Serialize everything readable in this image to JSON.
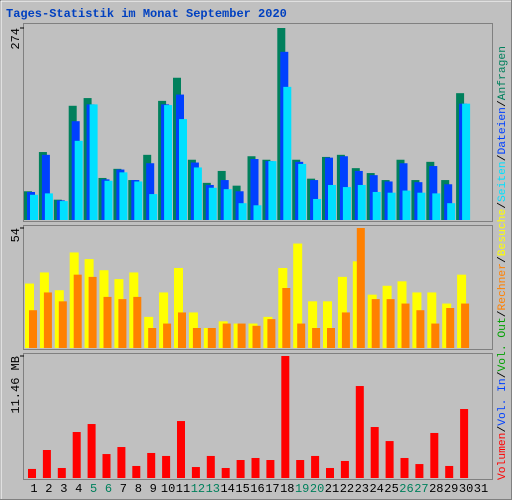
{
  "title": "Tages-Statistik im Monat September 2020",
  "legend_separator": "/",
  "chart_data": [
    {
      "type": "bar",
      "ylim": [
        0,
        274
      ],
      "yticks": [
        274
      ],
      "series": [
        {
          "name": "Anfragen",
          "color": "#00805c",
          "values": [
            41,
            97,
            29,
            163,
            174,
            60,
            73,
            57,
            93,
            170,
            203,
            86,
            53,
            70,
            49,
            91,
            86,
            274,
            86,
            59,
            90,
            93,
            74,
            67,
            57,
            86,
            57,
            83,
            57,
            181,
            null
          ]
        },
        {
          "name": "Dateien",
          "color": "#0040ff",
          "values": [
            40,
            93,
            28,
            141,
            165,
            58,
            72,
            57,
            81,
            165,
            179,
            82,
            50,
            57,
            41,
            87,
            84,
            240,
            83,
            57,
            89,
            91,
            70,
            64,
            55,
            81,
            54,
            77,
            51,
            166,
            null
          ]
        },
        {
          "name": "Seiten",
          "color": "#00e0ff",
          "values": [
            36,
            38,
            27,
            113,
            165,
            56,
            68,
            55,
            37,
            164,
            144,
            75,
            46,
            44,
            24,
            21,
            84,
            190,
            80,
            30,
            50,
            47,
            50,
            40,
            39,
            42,
            39,
            38,
            24,
            166,
            null
          ]
        }
      ]
    },
    {
      "type": "bar",
      "ylim": [
        0,
        54
      ],
      "yticks": [
        54
      ],
      "series": [
        {
          "name": "Besuche",
          "color": "#ffff00",
          "values": [
            29,
            34,
            26,
            43,
            40,
            35,
            31,
            34,
            14,
            25,
            36,
            16,
            9,
            12,
            11,
            11,
            14,
            36,
            47,
            21,
            21,
            32,
            39,
            24,
            28,
            30,
            25,
            25,
            20,
            33,
            null
          ]
        },
        {
          "name": "Rechner",
          "color": "#ff8000",
          "values": [
            17,
            25,
            21,
            33,
            32,
            23,
            22,
            23,
            9,
            11,
            16,
            9,
            9,
            11,
            11,
            10,
            13,
            27,
            11,
            9,
            9,
            16,
            54,
            22,
            22,
            20,
            17,
            11,
            18,
            20,
            null
          ]
        }
      ]
    },
    {
      "type": "bar",
      "ylim": [
        0,
        11.46
      ],
      "yticks": [
        {
          "value": 11.46,
          "label": "11.46 MB"
        }
      ],
      "categories": [
        "1",
        "2",
        "3",
        "4",
        "5",
        "6",
        "7",
        "8",
        "9",
        "10",
        "11",
        "12",
        "13",
        "14",
        "15",
        "16",
        "17",
        "18",
        "19",
        "20",
        "21",
        "22",
        "23",
        "24",
        "25",
        "26",
        "27",
        "28",
        "29",
        "30",
        "31"
      ],
      "category_colors": [
        "#000000",
        "#000000",
        "#000000",
        "#000000",
        "#00805c",
        "#00805c",
        "#000000",
        "#000000",
        "#000000",
        "#000000",
        "#000000",
        "#00805c",
        "#00805c",
        "#000000",
        "#000000",
        "#000000",
        "#000000",
        "#000000",
        "#00805c",
        "#00805c",
        "#000000",
        "#000000",
        "#000000",
        "#000000",
        "#000000",
        "#00805c",
        "#00805c",
        "#000000",
        "#000000",
        "#000000",
        "#000000"
      ],
      "series": [
        {
          "name": "Vol. Out",
          "color": "#00a000",
          "values": [
            0,
            0,
            0,
            0,
            0,
            0,
            0,
            0,
            0,
            0,
            0,
            0,
            0,
            0,
            0,
            0,
            0,
            0,
            0,
            0,
            0,
            0,
            0,
            0,
            0,
            0,
            0,
            0,
            0,
            0,
            null
          ]
        },
        {
          "name": "Vol. In",
          "color": "#0040ff",
          "values": [
            0,
            0,
            0,
            0,
            0,
            0,
            0,
            0,
            0,
            0,
            0,
            0,
            0,
            0,
            0,
            0,
            0,
            0,
            0,
            0,
            0,
            0,
            0,
            0,
            0,
            0,
            0,
            0,
            0,
            0,
            null
          ]
        },
        {
          "name": "Volumen",
          "color": "#ff0000",
          "values": [
            0.85,
            2.63,
            0.94,
            4.32,
            5.07,
            2.25,
            2.91,
            1.13,
            2.35,
            2.07,
            5.35,
            1.03,
            2.07,
            0.94,
            1.69,
            1.88,
            1.69,
            11.46,
            1.69,
            2.07,
            0.94,
            1.6,
            8.64,
            4.79,
            3.47,
            1.88,
            1.31,
            4.23,
            1.13,
            6.48,
            null
          ]
        }
      ]
    }
  ]
}
